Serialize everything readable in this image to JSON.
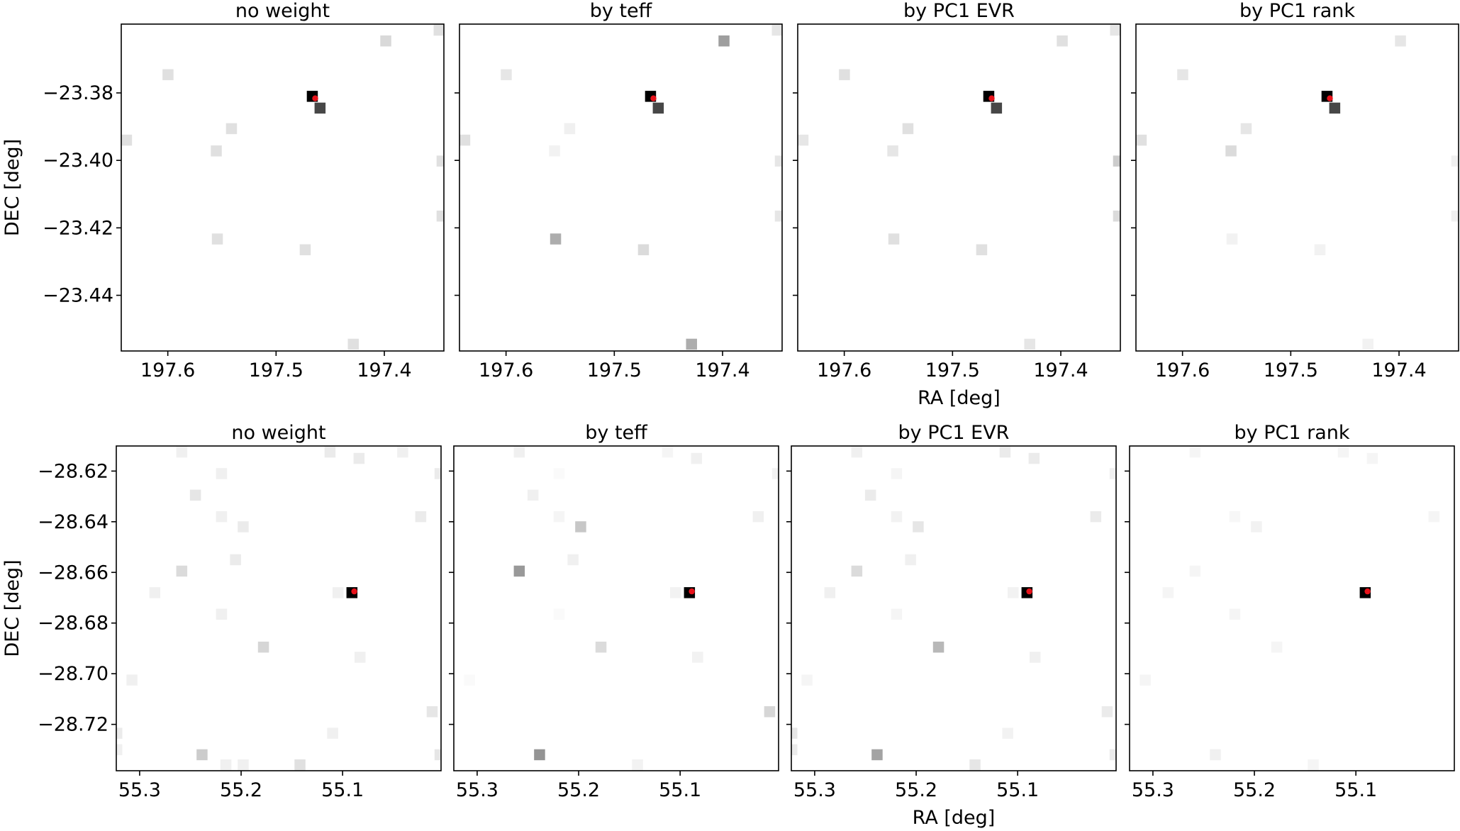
{
  "figure": {
    "colors": {
      "frame": "#000000",
      "marker": "#e8131b",
      "background": "#ffffff"
    }
  },
  "chart_data": [
    {
      "type": "heatmap",
      "row": 0,
      "title": "no weight",
      "xlabel": "",
      "ylabel": "DEC [deg]",
      "xlim": [
        197.643,
        197.345
      ],
      "ylim": [
        -23.4565,
        -23.3596
      ],
      "xticks": [
        197.6,
        197.5,
        197.4
      ],
      "xtick_labels": [
        "197.6",
        "197.5",
        "197.4"
      ],
      "yticks": [
        -23.38,
        -23.4,
        -23.42,
        -23.44
      ],
      "ytick_labels": [
        "−23.38",
        "−23.40",
        "−23.42",
        "−23.44"
      ],
      "target": {
        "ra": 197.4639,
        "dec": -23.3816
      },
      "pixels": [
        {
          "ra": 197.4665,
          "dec": -23.381,
          "intensity": 1.0
        },
        {
          "ra": 197.4594,
          "dec": -23.3845,
          "intensity": 0.72
        },
        {
          "ra": 197.3987,
          "dec": -23.3646,
          "intensity": 0.15
        },
        {
          "ra": 197.3494,
          "dec": -23.3614,
          "intensity": 0.12
        },
        {
          "ra": 197.5998,
          "dec": -23.3746,
          "intensity": 0.12
        },
        {
          "ra": 197.5412,
          "dec": -23.3906,
          "intensity": 0.12
        },
        {
          "ra": 197.6381,
          "dec": -23.394,
          "intensity": 0.12
        },
        {
          "ra": 197.5552,
          "dec": -23.3972,
          "intensity": 0.12
        },
        {
          "ra": 197.3467,
          "dec": -23.4002,
          "intensity": 0.12
        },
        {
          "ra": 197.3467,
          "dec": -23.4165,
          "intensity": 0.12
        },
        {
          "ra": 197.5542,
          "dec": -23.4233,
          "intensity": 0.12
        },
        {
          "ra": 197.4731,
          "dec": -23.4265,
          "intensity": 0.12
        },
        {
          "ra": 197.4287,
          "dec": -23.4545,
          "intensity": 0.12
        }
      ]
    },
    {
      "type": "heatmap",
      "row": 0,
      "title": "by teff",
      "xlabel": "",
      "ylabel": "",
      "xlim": [
        197.643,
        197.345
      ],
      "ylim": [
        -23.4565,
        -23.3596
      ],
      "xticks": [
        197.6,
        197.5,
        197.4
      ],
      "xtick_labels": [
        "197.6",
        "197.5",
        "197.4"
      ],
      "yticks": [
        -23.38,
        -23.4,
        -23.42,
        -23.44
      ],
      "ytick_labels": [
        "",
        "",
        "",
        ""
      ],
      "target": {
        "ra": 197.4639,
        "dec": -23.3816
      },
      "pixels": [
        {
          "ra": 197.4665,
          "dec": -23.381,
          "intensity": 1.0
        },
        {
          "ra": 197.4594,
          "dec": -23.3845,
          "intensity": 0.72
        },
        {
          "ra": 197.3987,
          "dec": -23.3646,
          "intensity": 0.38
        },
        {
          "ra": 197.3494,
          "dec": -23.3614,
          "intensity": 0.1
        },
        {
          "ra": 197.5998,
          "dec": -23.3746,
          "intensity": 0.1
        },
        {
          "ra": 197.5412,
          "dec": -23.3906,
          "intensity": 0.06
        },
        {
          "ra": 197.6381,
          "dec": -23.394,
          "intensity": 0.12
        },
        {
          "ra": 197.5552,
          "dec": -23.3972,
          "intensity": 0.05
        },
        {
          "ra": 197.3467,
          "dec": -23.4002,
          "intensity": 0.1
        },
        {
          "ra": 197.3467,
          "dec": -23.4165,
          "intensity": 0.1
        },
        {
          "ra": 197.5542,
          "dec": -23.4233,
          "intensity": 0.32
        },
        {
          "ra": 197.4731,
          "dec": -23.4265,
          "intensity": 0.14
        },
        {
          "ra": 197.4287,
          "dec": -23.4545,
          "intensity": 0.32
        }
      ]
    },
    {
      "type": "heatmap",
      "row": 0,
      "title": "by PC1 EVR",
      "xlabel": "RA [deg]",
      "ylabel": "",
      "xlim": [
        197.643,
        197.345
      ],
      "ylim": [
        -23.4565,
        -23.3596
      ],
      "xticks": [
        197.6,
        197.5,
        197.4
      ],
      "xtick_labels": [
        "197.6",
        "197.5",
        "197.4"
      ],
      "yticks": [
        -23.38,
        -23.4,
        -23.42,
        -23.44
      ],
      "ytick_labels": [
        "",
        "",
        "",
        ""
      ],
      "target": {
        "ra": 197.4639,
        "dec": -23.3816
      },
      "pixels": [
        {
          "ra": 197.4665,
          "dec": -23.381,
          "intensity": 1.0
        },
        {
          "ra": 197.4594,
          "dec": -23.3845,
          "intensity": 0.72
        },
        {
          "ra": 197.3987,
          "dec": -23.3646,
          "intensity": 0.12
        },
        {
          "ra": 197.3494,
          "dec": -23.3614,
          "intensity": 0.1
        },
        {
          "ra": 197.5998,
          "dec": -23.3746,
          "intensity": 0.12
        },
        {
          "ra": 197.5412,
          "dec": -23.3906,
          "intensity": 0.12
        },
        {
          "ra": 197.6381,
          "dec": -23.394,
          "intensity": 0.1
        },
        {
          "ra": 197.5552,
          "dec": -23.3972,
          "intensity": 0.1
        },
        {
          "ra": 197.3467,
          "dec": -23.4002,
          "intensity": 0.2
        },
        {
          "ra": 197.3467,
          "dec": -23.4165,
          "intensity": 0.14
        },
        {
          "ra": 197.5542,
          "dec": -23.4233,
          "intensity": 0.12
        },
        {
          "ra": 197.4731,
          "dec": -23.4265,
          "intensity": 0.12
        },
        {
          "ra": 197.4287,
          "dec": -23.4545,
          "intensity": 0.1
        }
      ]
    },
    {
      "type": "heatmap",
      "row": 0,
      "title": "by PC1 rank",
      "xlabel": "",
      "ylabel": "",
      "xlim": [
        197.643,
        197.345
      ],
      "ylim": [
        -23.4565,
        -23.3596
      ],
      "xticks": [
        197.6,
        197.5,
        197.4
      ],
      "xtick_labels": [
        "197.6",
        "197.5",
        "197.4"
      ],
      "yticks": [
        -23.38,
        -23.4,
        -23.42,
        -23.44
      ],
      "ytick_labels": [
        "",
        "",
        "",
        ""
      ],
      "target": {
        "ra": 197.4639,
        "dec": -23.3816
      },
      "pixels": [
        {
          "ra": 197.4665,
          "dec": -23.381,
          "intensity": 1.0
        },
        {
          "ra": 197.4594,
          "dec": -23.3845,
          "intensity": 0.72
        },
        {
          "ra": 197.3987,
          "dec": -23.3646,
          "intensity": 0.1
        },
        {
          "ra": 197.5998,
          "dec": -23.3746,
          "intensity": 0.1
        },
        {
          "ra": 197.5412,
          "dec": -23.3906,
          "intensity": 0.1
        },
        {
          "ra": 197.6381,
          "dec": -23.394,
          "intensity": 0.12
        },
        {
          "ra": 197.5552,
          "dec": -23.3972,
          "intensity": 0.14
        },
        {
          "ra": 197.3467,
          "dec": -23.4002,
          "intensity": 0.06
        },
        {
          "ra": 197.3467,
          "dec": -23.4165,
          "intensity": 0.06
        },
        {
          "ra": 197.5542,
          "dec": -23.4233,
          "intensity": 0.05
        },
        {
          "ra": 197.4731,
          "dec": -23.4265,
          "intensity": 0.05
        },
        {
          "ra": 197.4287,
          "dec": -23.4545,
          "intensity": 0.05
        }
      ]
    },
    {
      "type": "heatmap",
      "row": 1,
      "title": "no weight",
      "xlabel": "",
      "ylabel": "DEC [deg]",
      "xlim": [
        55.323,
        55.003
      ],
      "ylim": [
        -28.7383,
        -28.6101
      ],
      "xticks": [
        55.3,
        55.2,
        55.1
      ],
      "xtick_labels": [
        "55.3",
        "55.2",
        "55.1"
      ],
      "yticks": [
        -28.62,
        -28.64,
        -28.66,
        -28.68,
        -28.7,
        -28.72
      ],
      "ytick_labels": [
        "−28.62",
        "−28.64",
        "−28.66",
        "−28.68",
        "−28.70",
        "−28.72"
      ],
      "target": {
        "ra": 55.0885,
        "dec": -28.6675
      },
      "pixels": [
        {
          "ra": 55.0908,
          "dec": -28.668,
          "intensity": 1.0
        },
        {
          "ra": 55.2585,
          "dec": -28.6125,
          "intensity": 0.06
        },
        {
          "ra": 55.1124,
          "dec": -28.6125,
          "intensity": 0.08
        },
        {
          "ra": 55.0838,
          "dec": -28.615,
          "intensity": 0.08
        },
        {
          "ra": 55.0408,
          "dec": -28.6125,
          "intensity": 0.06
        },
        {
          "ra": 55.2193,
          "dec": -28.621,
          "intensity": 0.06
        },
        {
          "ra": 55.004,
          "dec": -28.621,
          "intensity": 0.08
        },
        {
          "ra": 55.245,
          "dec": -28.6295,
          "intensity": 0.1
        },
        {
          "ra": 55.2193,
          "dec": -28.638,
          "intensity": 0.06
        },
        {
          "ra": 55.198,
          "dec": -28.642,
          "intensity": 0.08
        },
        {
          "ra": 55.023,
          "dec": -28.638,
          "intensity": 0.08
        },
        {
          "ra": 55.2055,
          "dec": -28.655,
          "intensity": 0.08
        },
        {
          "ra": 55.2585,
          "dec": -28.6595,
          "intensity": 0.14
        },
        {
          "ra": 55.285,
          "dec": -28.668,
          "intensity": 0.06
        },
        {
          "ra": 55.1045,
          "dec": -28.668,
          "intensity": 0.06
        },
        {
          "ra": 55.2193,
          "dec": -28.6765,
          "intensity": 0.06
        },
        {
          "ra": 55.178,
          "dec": -28.6895,
          "intensity": 0.16
        },
        {
          "ra": 55.0828,
          "dec": -28.6935,
          "intensity": 0.06
        },
        {
          "ra": 55.3075,
          "dec": -28.7025,
          "intensity": 0.06
        },
        {
          "ra": 55.0118,
          "dec": -28.715,
          "intensity": 0.1
        },
        {
          "ra": 55.1098,
          "dec": -28.7235,
          "intensity": 0.06
        },
        {
          "ra": 55.3225,
          "dec": -28.7235,
          "intensity": 0.08
        },
        {
          "ra": 55.3225,
          "dec": -28.73,
          "intensity": 0.06
        },
        {
          "ra": 55.2385,
          "dec": -28.732,
          "intensity": 0.2
        },
        {
          "ra": 55.004,
          "dec": -28.732,
          "intensity": 0.1
        },
        {
          "ra": 55.215,
          "dec": -28.736,
          "intensity": 0.06
        },
        {
          "ra": 55.198,
          "dec": -28.736,
          "intensity": 0.06
        },
        {
          "ra": 55.142,
          "dec": -28.736,
          "intensity": 0.12
        }
      ]
    },
    {
      "type": "heatmap",
      "row": 1,
      "title": "by teff",
      "xlabel": "",
      "ylabel": "",
      "xlim": [
        55.323,
        55.003
      ],
      "ylim": [
        -28.7383,
        -28.6101
      ],
      "xticks": [
        55.3,
        55.2,
        55.1
      ],
      "xtick_labels": [
        "55.3",
        "55.2",
        "55.1"
      ],
      "yticks": [
        -28.62,
        -28.64,
        -28.66,
        -28.68,
        -28.7,
        -28.72
      ],
      "ytick_labels": [
        "",
        "",
        "",
        "",
        "",
        ""
      ],
      "target": {
        "ra": 55.0885,
        "dec": -28.6675
      },
      "pixels": [
        {
          "ra": 55.0908,
          "dec": -28.668,
          "intensity": 1.0
        },
        {
          "ra": 55.2585,
          "dec": -28.6125,
          "intensity": 0.06
        },
        {
          "ra": 55.1124,
          "dec": -28.6125,
          "intensity": 0.04
        },
        {
          "ra": 55.0838,
          "dec": -28.615,
          "intensity": 0.06
        },
        {
          "ra": 55.004,
          "dec": -28.621,
          "intensity": 0.05
        },
        {
          "ra": 55.2193,
          "dec": -28.621,
          "intensity": 0.02
        },
        {
          "ra": 55.245,
          "dec": -28.6295,
          "intensity": 0.06
        },
        {
          "ra": 55.2193,
          "dec": -28.638,
          "intensity": 0.04
        },
        {
          "ra": 55.198,
          "dec": -28.642,
          "intensity": 0.22
        },
        {
          "ra": 55.023,
          "dec": -28.638,
          "intensity": 0.06
        },
        {
          "ra": 55.2055,
          "dec": -28.655,
          "intensity": 0.06
        },
        {
          "ra": 55.2585,
          "dec": -28.6595,
          "intensity": 0.4
        },
        {
          "ra": 55.1045,
          "dec": -28.668,
          "intensity": 0.05
        },
        {
          "ra": 55.2193,
          "dec": -28.6765,
          "intensity": 0.02
        },
        {
          "ra": 55.178,
          "dec": -28.6895,
          "intensity": 0.14
        },
        {
          "ra": 55.0828,
          "dec": -28.6935,
          "intensity": 0.05
        },
        {
          "ra": 55.3075,
          "dec": -28.7025,
          "intensity": 0.02
        },
        {
          "ra": 55.0118,
          "dec": -28.715,
          "intensity": 0.16
        },
        {
          "ra": 55.2385,
          "dec": -28.732,
          "intensity": 0.42
        },
        {
          "ra": 55.142,
          "dec": -28.736,
          "intensity": 0.05
        }
      ]
    },
    {
      "type": "heatmap",
      "row": 1,
      "title": "by PC1 EVR",
      "xlabel": "RA [deg]",
      "ylabel": "",
      "xlim": [
        55.323,
        55.003
      ],
      "ylim": [
        -28.7383,
        -28.6101
      ],
      "xticks": [
        55.3,
        55.2,
        55.1
      ],
      "xtick_labels": [
        "55.3",
        "55.2",
        "55.1"
      ],
      "yticks": [
        -28.62,
        -28.64,
        -28.66,
        -28.68,
        -28.7,
        -28.72
      ],
      "ytick_labels": [
        "",
        "",
        "",
        "",
        "",
        ""
      ],
      "target": {
        "ra": 55.0885,
        "dec": -28.6675
      },
      "pixels": [
        {
          "ra": 55.0908,
          "dec": -28.668,
          "intensity": 1.0
        },
        {
          "ra": 55.2585,
          "dec": -28.6125,
          "intensity": 0.06
        },
        {
          "ra": 55.1124,
          "dec": -28.6125,
          "intensity": 0.08
        },
        {
          "ra": 55.0838,
          "dec": -28.615,
          "intensity": 0.08
        },
        {
          "ra": 55.004,
          "dec": -28.621,
          "intensity": 0.06
        },
        {
          "ra": 55.2193,
          "dec": -28.621,
          "intensity": 0.04
        },
        {
          "ra": 55.245,
          "dec": -28.6295,
          "intensity": 0.08
        },
        {
          "ra": 55.2193,
          "dec": -28.638,
          "intensity": 0.05
        },
        {
          "ra": 55.198,
          "dec": -28.642,
          "intensity": 0.1
        },
        {
          "ra": 55.023,
          "dec": -28.638,
          "intensity": 0.08
        },
        {
          "ra": 55.2055,
          "dec": -28.655,
          "intensity": 0.06
        },
        {
          "ra": 55.2585,
          "dec": -28.6595,
          "intensity": 0.14
        },
        {
          "ra": 55.285,
          "dec": -28.668,
          "intensity": 0.06
        },
        {
          "ra": 55.1045,
          "dec": -28.668,
          "intensity": 0.05
        },
        {
          "ra": 55.2193,
          "dec": -28.6765,
          "intensity": 0.04
        },
        {
          "ra": 55.178,
          "dec": -28.6895,
          "intensity": 0.28
        },
        {
          "ra": 55.0828,
          "dec": -28.6935,
          "intensity": 0.06
        },
        {
          "ra": 55.3075,
          "dec": -28.7025,
          "intensity": 0.04
        },
        {
          "ra": 55.0118,
          "dec": -28.715,
          "intensity": 0.08
        },
        {
          "ra": 55.1098,
          "dec": -28.7235,
          "intensity": 0.05
        },
        {
          "ra": 55.3225,
          "dec": -28.7235,
          "intensity": 0.1
        },
        {
          "ra": 55.3225,
          "dec": -28.73,
          "intensity": 0.08
        },
        {
          "ra": 55.2385,
          "dec": -28.732,
          "intensity": 0.36
        },
        {
          "ra": 55.004,
          "dec": -28.732,
          "intensity": 0.08
        },
        {
          "ra": 55.142,
          "dec": -28.736,
          "intensity": 0.1
        }
      ]
    },
    {
      "type": "heatmap",
      "row": 1,
      "title": "by PC1 rank",
      "xlabel": "",
      "ylabel": "",
      "xlim": [
        55.323,
        55.003
      ],
      "ylim": [
        -28.7383,
        -28.6101
      ],
      "xticks": [
        55.3,
        55.2,
        55.1
      ],
      "xtick_labels": [
        "55.3",
        "55.2",
        "55.1"
      ],
      "yticks": [
        -28.62,
        -28.64,
        -28.66,
        -28.68,
        -28.7,
        -28.72
      ],
      "ytick_labels": [
        "",
        "",
        "",
        "",
        "",
        ""
      ],
      "target": {
        "ra": 55.0885,
        "dec": -28.6675
      },
      "pixels": [
        {
          "ra": 55.0908,
          "dec": -28.668,
          "intensity": 1.0
        },
        {
          "ra": 55.2585,
          "dec": -28.6125,
          "intensity": 0.04
        },
        {
          "ra": 55.1124,
          "dec": -28.6125,
          "intensity": 0.04
        },
        {
          "ra": 55.0838,
          "dec": -28.615,
          "intensity": 0.04
        },
        {
          "ra": 55.023,
          "dec": -28.638,
          "intensity": 0.04
        },
        {
          "ra": 55.198,
          "dec": -28.642,
          "intensity": 0.05
        },
        {
          "ra": 55.2193,
          "dec": -28.638,
          "intensity": 0.03
        },
        {
          "ra": 55.2585,
          "dec": -28.6595,
          "intensity": 0.04
        },
        {
          "ra": 55.285,
          "dec": -28.668,
          "intensity": 0.04
        },
        {
          "ra": 55.2193,
          "dec": -28.6765,
          "intensity": 0.04
        },
        {
          "ra": 55.178,
          "dec": -28.6895,
          "intensity": 0.04
        },
        {
          "ra": 55.3075,
          "dec": -28.7025,
          "intensity": 0.04
        },
        {
          "ra": 55.2385,
          "dec": -28.732,
          "intensity": 0.06
        },
        {
          "ra": 55.142,
          "dec": -28.736,
          "intensity": 0.04
        }
      ]
    }
  ]
}
